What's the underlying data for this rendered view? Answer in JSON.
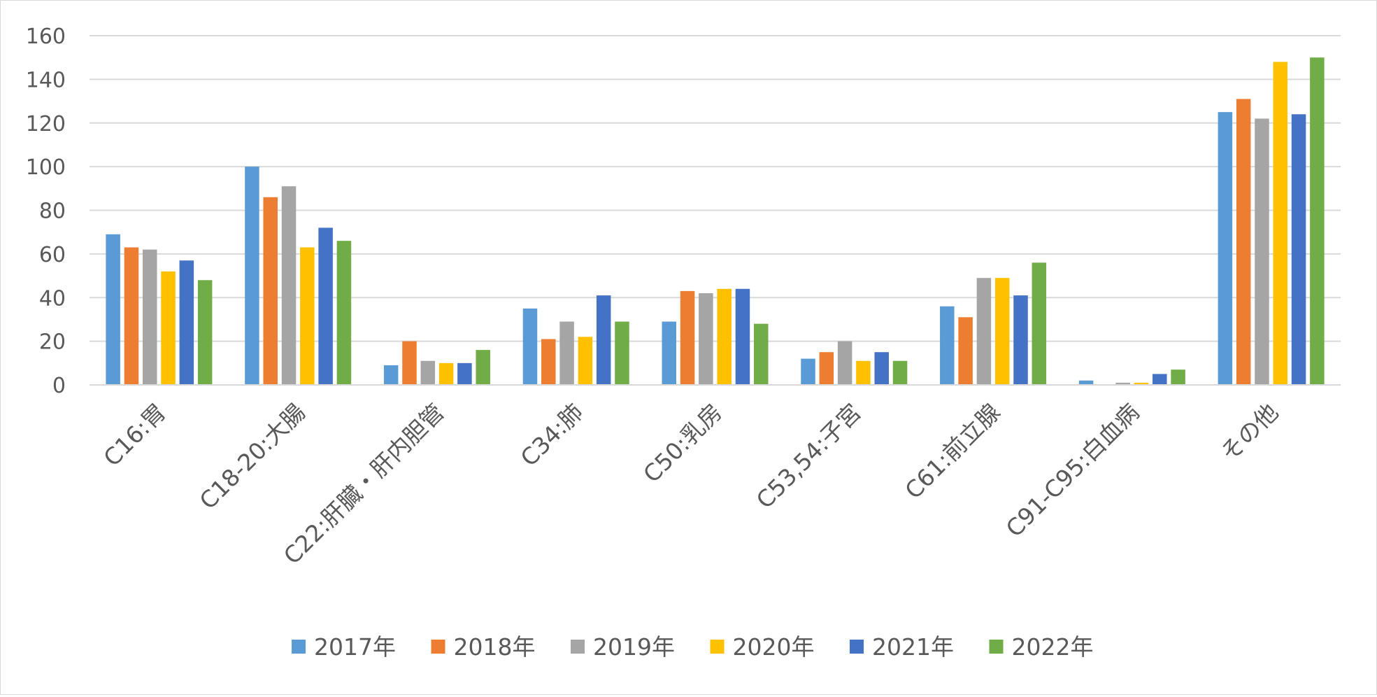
{
  "chart_data": {
    "type": "bar",
    "categories": [
      "C16:胃",
      "C18-20:大腸",
      "C22:肝臓・肝内胆管",
      "C34:肺",
      "C50:乳房",
      "C53,54:子宮",
      "C61:前立腺",
      "C91-C95:白血病",
      "その他"
    ],
    "series": [
      {
        "name": "2017年",
        "color": "#5b9bd5",
        "values": [
          69,
          100,
          9,
          35,
          29,
          12,
          36,
          2,
          125
        ]
      },
      {
        "name": "2018年",
        "color": "#ed7d31",
        "values": [
          63,
          86,
          20,
          21,
          43,
          15,
          31,
          0,
          131
        ]
      },
      {
        "name": "2019年",
        "color": "#a5a5a5",
        "values": [
          62,
          91,
          11,
          29,
          42,
          20,
          49,
          1,
          122
        ]
      },
      {
        "name": "2020年",
        "color": "#ffc000",
        "values": [
          52,
          63,
          10,
          22,
          44,
          11,
          49,
          1,
          148
        ]
      },
      {
        "name": "2021年",
        "color": "#4472c4",
        "values": [
          57,
          72,
          10,
          41,
          44,
          15,
          41,
          5,
          124
        ]
      },
      {
        "name": "2022年",
        "color": "#70ad47",
        "values": [
          48,
          66,
          16,
          29,
          28,
          11,
          56,
          7,
          150
        ]
      }
    ],
    "ylim": [
      0,
      160
    ],
    "yticks": [
      0,
      20,
      40,
      60,
      80,
      100,
      120,
      140,
      160
    ],
    "grid": true,
    "legend_position": "bottom"
  }
}
